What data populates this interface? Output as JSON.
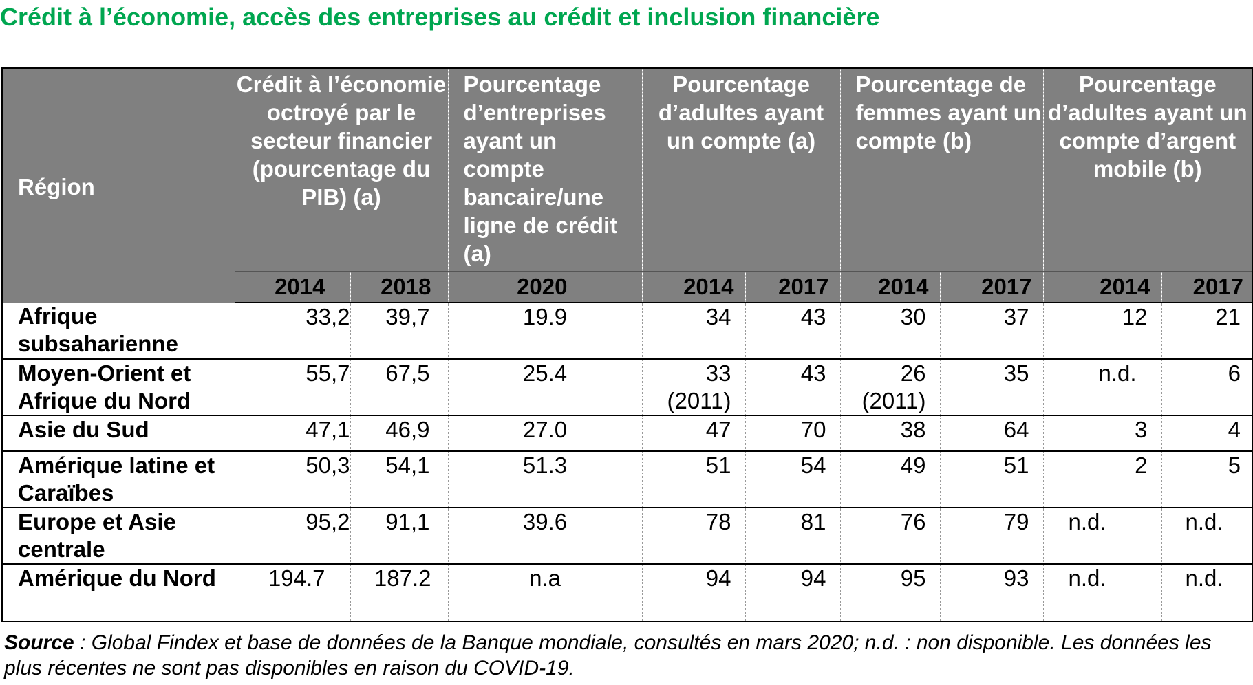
{
  "title": "Crédit à l’économie, accès des entreprises au crédit et inclusion financière",
  "table": {
    "headers": {
      "region": "Région",
      "credit": "Crédit à l’économie octroyé par le secteur financier (pourcentage du PIB) (a)",
      "enterprises": "Pourcentage d’entreprises ayant un compte bancaire/une ligne de crédit (a)",
      "adults": "Pourcentage d’adultes ayant un compte (a)",
      "women": "Pourcentage de femmes ayant un compte (b)",
      "mobile": "Pourcentage d’adultes ayant un compte d’argent mobile (b)"
    },
    "years": [
      "2014",
      "2018",
      "2020",
      "2014",
      "2017",
      "2014",
      "2017",
      "2014",
      "2017"
    ],
    "rows": [
      {
        "region": "Afrique subsaharienne",
        "credit_2014": "33,2",
        "credit_2018": "39,7",
        "ent_2020": "19.9",
        "adults_2014": "34",
        "adults_2017": "43",
        "women_2014": "30",
        "women_2017": "37",
        "mobile_2014": "12",
        "mobile_2017": "21"
      },
      {
        "region": "Moyen-Orient et Afrique du Nord",
        "credit_2014": "55,7",
        "credit_2018": "67,5",
        "ent_2020": "25.4",
        "adults_2014": "33 (2011)",
        "adults_2017": "43",
        "women_2014": "26 (2011)",
        "women_2017": "35",
        "mobile_2014": "n.d.",
        "mobile_2017": "6"
      },
      {
        "region": "Asie du Sud",
        "credit_2014": "47,1",
        "credit_2018": "46,9",
        "ent_2020": "27.0",
        "adults_2014": "47",
        "adults_2017": "70",
        "women_2014": "38",
        "women_2017": "64",
        "mobile_2014": "3",
        "mobile_2017": "4"
      },
      {
        "region": "Amérique latine et Caraïbes",
        "credit_2014": "50,3",
        "credit_2018": "54,1",
        "ent_2020": "51.3",
        "adults_2014": "51",
        "adults_2017": "54",
        "women_2014": "49",
        "women_2017": "51",
        "mobile_2014": "2",
        "mobile_2017": "5"
      },
      {
        "region": "Europe et Asie centrale",
        "credit_2014": "95,2",
        "credit_2018": "91,1",
        "ent_2020": "39.6",
        "adults_2014": "78",
        "adults_2017": "81",
        "women_2014": "76",
        "women_2017": "79",
        "mobile_2014": "n.d.",
        "mobile_2017": "n.d."
      },
      {
        "region": "Amérique du Nord",
        "credit_2014": "194.7",
        "credit_2018": "187.2",
        "ent_2020": "n.a",
        "adults_2014": "94",
        "adults_2017": "94",
        "women_2014": "95",
        "women_2017": "93",
        "mobile_2014": "n.d.",
        "mobile_2017": "n.d."
      }
    ]
  },
  "source": {
    "label": "Source",
    "text": " : Global Findex et base de données de la Banque mondiale, consultés en mars 2020; n.d. : non disponible. Les données les plus récentes ne sont pas disponibles en raison du COVID-19."
  },
  "colors": {
    "title": "#00a650",
    "header_bg": "#808080"
  }
}
